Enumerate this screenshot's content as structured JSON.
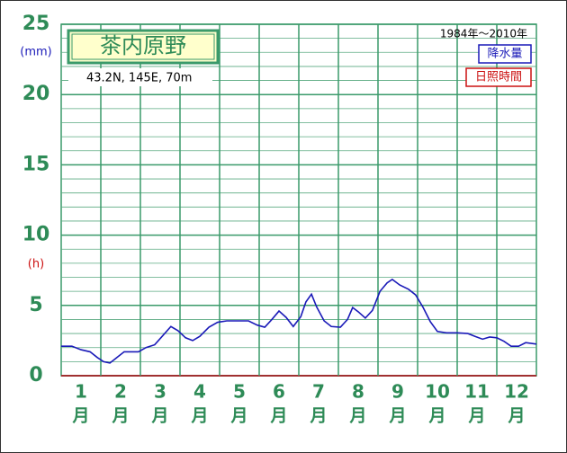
{
  "chart_data": {
    "type": "line",
    "title": "茶内原野",
    "subtitle": "43.2N, 145E, 70m",
    "period": "1984年〜2010年",
    "y_unit": "(mm)",
    "y2_unit": "(h)",
    "categories": [
      "1",
      "2",
      "3",
      "4",
      "5",
      "6",
      "7",
      "8",
      "9",
      "10",
      "11",
      "12"
    ],
    "x_unit": "月",
    "xlim": [
      0,
      12
    ],
    "x": [
      0,
      0.27,
      0.5,
      0.73,
      0.91,
      1.07,
      1.23,
      1.41,
      1.59,
      1.77,
      1.95,
      2.14,
      2.36,
      2.55,
      2.77,
      2.95,
      3.14,
      3.32,
      3.5,
      3.73,
      3.95,
      4.18,
      4.41,
      4.73,
      4.95,
      5.14,
      5.32,
      5.5,
      5.68,
      5.86,
      6.05,
      6.18,
      6.32,
      6.45,
      6.64,
      6.82,
      7.05,
      7.23,
      7.36,
      7.5,
      7.68,
      7.86,
      8.05,
      8.23,
      8.36,
      8.55,
      8.77,
      8.95,
      9.14,
      9.32,
      9.5,
      9.73,
      10,
      10.27,
      10.45,
      10.64,
      10.82,
      11,
      11.18,
      11.36,
      11.55,
      11.73,
      12
    ],
    "series": [
      {
        "color": "#1a1ab8",
        "values": [
          2.1,
          2.1,
          1.85,
          1.7,
          1.3,
          1.0,
          0.9,
          1.3,
          1.7,
          1.7,
          1.7,
          2.0,
          2.2,
          2.8,
          3.5,
          3.2,
          2.7,
          2.5,
          2.8,
          3.45,
          3.8,
          3.9,
          3.9,
          3.9,
          3.6,
          3.45,
          4.0,
          4.6,
          4.15,
          3.5,
          4.2,
          5.25,
          5.8,
          4.9,
          3.9,
          3.5,
          3.45,
          4.0,
          4.85,
          4.55,
          4.1,
          4.65,
          6.0,
          6.6,
          6.85,
          6.45,
          6.15,
          5.75,
          4.85,
          3.85,
          3.15,
          3.05,
          3.05,
          3.0,
          2.8,
          2.6,
          2.75,
          2.7,
          2.45,
          2.1,
          2.1,
          2.35,
          2.25
        ]
      }
    ],
    "legend": [
      {
        "label": "降水量",
        "color": "#1a1ab8"
      },
      {
        "label": "日照時間",
        "color": "#cc1111"
      }
    ],
    "ylim": [
      0,
      25
    ],
    "yticks": [
      0,
      5,
      10,
      15,
      20,
      25
    ],
    "minor_yticks": [
      1,
      2,
      3,
      4,
      6,
      7,
      8,
      9,
      11,
      12,
      13,
      14,
      16,
      17,
      18,
      19,
      21,
      22,
      23,
      24
    ],
    "grid": true
  }
}
